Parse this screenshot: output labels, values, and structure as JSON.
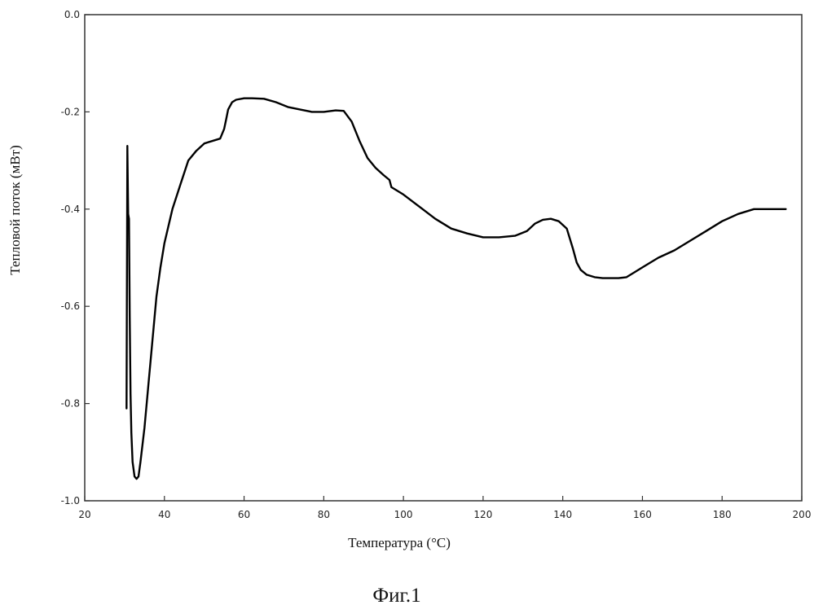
{
  "figure": {
    "caption": "Фиг.1"
  },
  "chart_data": {
    "type": "line",
    "title": "",
    "xlabel": "Температура  (°C)",
    "ylabel": "Тепловой поток (мВт)",
    "xlim": [
      20,
      200
    ],
    "ylim": [
      -1.0,
      0.0
    ],
    "x_ticks": [
      20,
      40,
      60,
      80,
      100,
      120,
      140,
      160,
      180,
      200
    ],
    "x_tick_labels": [
      "20",
      "40",
      "60",
      "80",
      "100",
      "120",
      "140",
      "160",
      "180",
      "200"
    ],
    "y_ticks": [
      0.0,
      -0.2,
      -0.4,
      -0.6,
      -0.8,
      -1.0
    ],
    "y_tick_labels": [
      "0.0",
      "-0.2",
      "-0.4",
      "-0.6",
      "-0.8",
      "-1.0"
    ],
    "grid": false,
    "legend": "none",
    "line_color": "#000000",
    "series": [
      {
        "x": [
          30.5,
          30.7,
          30.9,
          31.1,
          31.3,
          31.5,
          31.7,
          32.0,
          32.5,
          33.0,
          33.5,
          34.0,
          35.0,
          36.0,
          37.0,
          38.0,
          39.0,
          40.0,
          42.0,
          44.0,
          46.0,
          48.0,
          50.0,
          52.0,
          54.0,
          55.0,
          55.5,
          56.0,
          57.0,
          58.0,
          60.0,
          62.0,
          65.0,
          68.0,
          71.0,
          74.0,
          77.0,
          80.0,
          83.0,
          85.0,
          87.0,
          89.0,
          91.0,
          93.0,
          95.0,
          96.5,
          97.0,
          98.0,
          100.0,
          104.0,
          108.0,
          112.0,
          116.0,
          120.0,
          124.0,
          128.0,
          131.0,
          133.0,
          135.0,
          137.0,
          139.0,
          141.0,
          142.5,
          143.5,
          144.5,
          146.0,
          148.0,
          150.0,
          152.0,
          154.0,
          156.0,
          158.0,
          160.0,
          164.0,
          168.0,
          172.0,
          176.0,
          180.0,
          184.0,
          188.0,
          192.0,
          196.0
        ],
        "y": [
          -0.81,
          -0.27,
          -0.41,
          -0.42,
          -0.62,
          -0.78,
          -0.86,
          -0.92,
          -0.95,
          -0.955,
          -0.95,
          -0.92,
          -0.85,
          -0.76,
          -0.67,
          -0.58,
          -0.52,
          -0.47,
          -0.4,
          -0.35,
          -0.3,
          -0.28,
          -0.265,
          -0.26,
          -0.255,
          -0.235,
          -0.215,
          -0.195,
          -0.18,
          -0.175,
          -0.172,
          -0.172,
          -0.173,
          -0.18,
          -0.19,
          -0.195,
          -0.2,
          -0.2,
          -0.197,
          -0.198,
          -0.22,
          -0.26,
          -0.295,
          -0.315,
          -0.33,
          -0.34,
          -0.355,
          -0.36,
          -0.37,
          -0.395,
          -0.42,
          -0.44,
          -0.45,
          -0.458,
          -0.458,
          -0.455,
          -0.445,
          -0.43,
          -0.422,
          -0.42,
          -0.425,
          -0.44,
          -0.48,
          -0.51,
          -0.525,
          -0.535,
          -0.54,
          -0.542,
          -0.542,
          -0.542,
          -0.54,
          -0.53,
          -0.52,
          -0.5,
          -0.485,
          -0.465,
          -0.445,
          -0.425,
          -0.41,
          -0.4,
          -0.4,
          -0.4
        ]
      }
    ]
  }
}
